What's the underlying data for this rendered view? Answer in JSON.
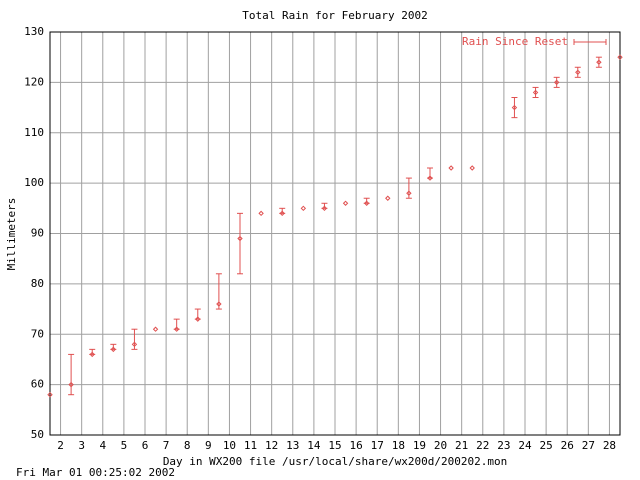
{
  "chart_data": {
    "type": "errorbar",
    "title": "Total Rain for February 2002",
    "x_label": "Day in WX200 file /usr/local/share/wx200d/200202.mon",
    "y_label": "Millimeters",
    "footer": "Fri Mar 01 00:25:02 2002",
    "xlim": [
      1.5,
      28.5
    ],
    "xticks": [
      2,
      3,
      4,
      5,
      6,
      7,
      8,
      9,
      10,
      11,
      12,
      13,
      14,
      15,
      16,
      17,
      18,
      19,
      20,
      21,
      22,
      23,
      24,
      25,
      26,
      27,
      28
    ],
    "ylim": [
      50,
      130
    ],
    "yticks": [
      50,
      60,
      70,
      80,
      90,
      100,
      110,
      120,
      130
    ],
    "grid": true,
    "legend": "upper right",
    "series": [
      {
        "name": "Rain Since Reset",
        "color": "#e05050",
        "x": [
          1.5,
          2.5,
          3.5,
          4.5,
          5.5,
          6.5,
          7.5,
          8.5,
          9.5,
          10.5,
          11.5,
          12.5,
          13.5,
          14.5,
          15.5,
          16.5,
          17.5,
          18.5,
          19.5,
          20.5,
          21.5,
          23.5,
          24.5,
          25.5,
          26.5,
          27.5,
          28.5
        ],
        "values": [
          58,
          60,
          66,
          67,
          68,
          71,
          71,
          73,
          76,
          89,
          94,
          94,
          95,
          95,
          96,
          96,
          97,
          98,
          101,
          103,
          103,
          115,
          118,
          120,
          122,
          124,
          125
        ],
        "low": [
          null,
          58,
          66,
          67,
          67,
          null,
          71,
          73,
          75,
          82,
          null,
          94,
          null,
          95,
          null,
          96,
          null,
          97,
          101,
          null,
          null,
          113,
          117,
          119,
          121,
          123,
          null
        ],
        "high": [
          null,
          66,
          67,
          68,
          71,
          null,
          73,
          75,
          82,
          94,
          null,
          95,
          null,
          96,
          null,
          97,
          null,
          101,
          103,
          null,
          null,
          117,
          119,
          121,
          123,
          125,
          null
        ]
      }
    ]
  }
}
